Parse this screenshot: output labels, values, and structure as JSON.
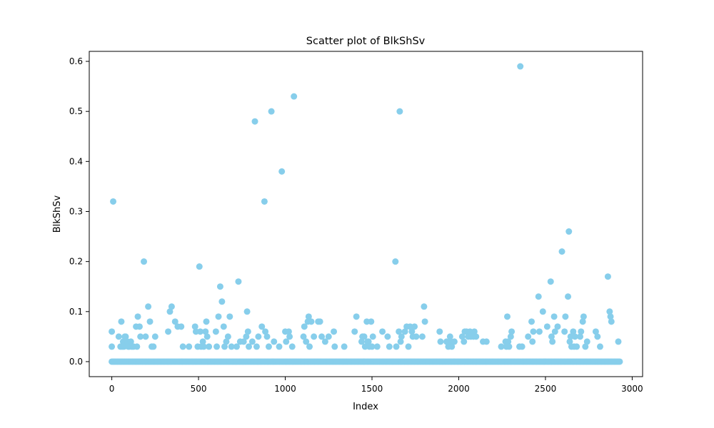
{
  "chart_data": {
    "type": "scatter",
    "title": "Scatter plot of BlkShSv",
    "xlabel": "Index",
    "ylabel": "BlkShSv",
    "xlim": [
      -130,
      3060
    ],
    "ylim": [
      -0.03,
      0.62
    ],
    "xticks": [
      0,
      500,
      1000,
      1500,
      2000,
      2500,
      3000
    ],
    "yticks": [
      0.0,
      0.1,
      0.2,
      0.3,
      0.4,
      0.5,
      0.6
    ],
    "xtick_labels": [
      "0",
      "500",
      "1000",
      "1500",
      "2000",
      "2500",
      "3000"
    ],
    "ytick_labels": [
      "0.0",
      "0.1",
      "0.2",
      "0.3",
      "0.4",
      "0.5",
      "0.6"
    ],
    "grid": false,
    "marker_color": "#87CEEB",
    "zero_band": {
      "x_start": 0,
      "x_end": 2929,
      "step": 8,
      "y": 0
    },
    "points": [
      [
        0,
        0.06
      ],
      [
        0,
        0.03
      ],
      [
        8,
        0.32
      ],
      [
        40,
        0.05
      ],
      [
        50,
        0.03
      ],
      [
        55,
        0.08
      ],
      [
        60,
        0.03
      ],
      [
        65,
        0.04
      ],
      [
        70,
        0.03
      ],
      [
        75,
        0.05
      ],
      [
        80,
        0.05
      ],
      [
        90,
        0.04
      ],
      [
        95,
        0.03
      ],
      [
        100,
        0.03
      ],
      [
        110,
        0.04
      ],
      [
        115,
        0.03
      ],
      [
        125,
        0.03
      ],
      [
        140,
        0.07
      ],
      [
        145,
        0.03
      ],
      [
        150,
        0.09
      ],
      [
        160,
        0.07
      ],
      [
        165,
        0.05
      ],
      [
        185,
        0.2
      ],
      [
        195,
        0.05
      ],
      [
        210,
        0.11
      ],
      [
        220,
        0.08
      ],
      [
        230,
        0.03
      ],
      [
        240,
        0.03
      ],
      [
        250,
        0.05
      ],
      [
        325,
        0.06
      ],
      [
        335,
        0.1
      ],
      [
        345,
        0.11
      ],
      [
        365,
        0.08
      ],
      [
        380,
        0.07
      ],
      [
        400,
        0.07
      ],
      [
        410,
        0.03
      ],
      [
        445,
        0.03
      ],
      [
        480,
        0.07
      ],
      [
        485,
        0.06
      ],
      [
        495,
        0.03
      ],
      [
        505,
        0.19
      ],
      [
        510,
        0.06
      ],
      [
        515,
        0.03
      ],
      [
        525,
        0.04
      ],
      [
        530,
        0.03
      ],
      [
        540,
        0.06
      ],
      [
        545,
        0.08
      ],
      [
        550,
        0.05
      ],
      [
        560,
        0.03
      ],
      [
        600,
        0.06
      ],
      [
        605,
        0.03
      ],
      [
        615,
        0.09
      ],
      [
        625,
        0.15
      ],
      [
        635,
        0.12
      ],
      [
        645,
        0.07
      ],
      [
        650,
        0.03
      ],
      [
        660,
        0.04
      ],
      [
        670,
        0.05
      ],
      [
        680,
        0.09
      ],
      [
        690,
        0.03
      ],
      [
        720,
        0.03
      ],
      [
        730,
        0.16
      ],
      [
        740,
        0.04
      ],
      [
        760,
        0.04
      ],
      [
        775,
        0.05
      ],
      [
        780,
        0.1
      ],
      [
        785,
        0.06
      ],
      [
        790,
        0.03
      ],
      [
        810,
        0.04
      ],
      [
        825,
        0.48
      ],
      [
        835,
        0.03
      ],
      [
        845,
        0.05
      ],
      [
        865,
        0.07
      ],
      [
        880,
        0.32
      ],
      [
        885,
        0.06
      ],
      [
        895,
        0.05
      ],
      [
        905,
        0.03
      ],
      [
        920,
        0.5
      ],
      [
        935,
        0.04
      ],
      [
        965,
        0.03
      ],
      [
        980,
        0.38
      ],
      [
        1000,
        0.06
      ],
      [
        1005,
        0.04
      ],
      [
        1020,
        0.06
      ],
      [
        1025,
        0.05
      ],
      [
        1040,
        0.03
      ],
      [
        1050,
        0.53
      ],
      [
        1105,
        0.05
      ],
      [
        1110,
        0.07
      ],
      [
        1120,
        0.04
      ],
      [
        1130,
        0.08
      ],
      [
        1135,
        0.09
      ],
      [
        1140,
        0.03
      ],
      [
        1150,
        0.08
      ],
      [
        1165,
        0.05
      ],
      [
        1190,
        0.08
      ],
      [
        1200,
        0.08
      ],
      [
        1210,
        0.05
      ],
      [
        1230,
        0.04
      ],
      [
        1250,
        0.05
      ],
      [
        1280,
        0.06
      ],
      [
        1285,
        0.03
      ],
      [
        1340,
        0.03
      ],
      [
        1400,
        0.06
      ],
      [
        1410,
        0.09
      ],
      [
        1440,
        0.04
      ],
      [
        1445,
        0.05
      ],
      [
        1455,
        0.05
      ],
      [
        1460,
        0.03
      ],
      [
        1470,
        0.08
      ],
      [
        1475,
        0.04
      ],
      [
        1480,
        0.04
      ],
      [
        1485,
        0.03
      ],
      [
        1495,
        0.08
      ],
      [
        1500,
        0.03
      ],
      [
        1505,
        0.05
      ],
      [
        1530,
        0.03
      ],
      [
        1560,
        0.06
      ],
      [
        1590,
        0.05
      ],
      [
        1600,
        0.03
      ],
      [
        1635,
        0.2
      ],
      [
        1640,
        0.03
      ],
      [
        1655,
        0.06
      ],
      [
        1660,
        0.5
      ],
      [
        1665,
        0.04
      ],
      [
        1670,
        0.05
      ],
      [
        1690,
        0.06
      ],
      [
        1700,
        0.07
      ],
      [
        1710,
        0.03
      ],
      [
        1720,
        0.07
      ],
      [
        1730,
        0.06
      ],
      [
        1735,
        0.05
      ],
      [
        1745,
        0.07
      ],
      [
        1755,
        0.05
      ],
      [
        1790,
        0.05
      ],
      [
        1800,
        0.11
      ],
      [
        1805,
        0.08
      ],
      [
        1890,
        0.06
      ],
      [
        1895,
        0.04
      ],
      [
        1930,
        0.04
      ],
      [
        1940,
        0.03
      ],
      [
        1950,
        0.05
      ],
      [
        1955,
        0.04
      ],
      [
        1960,
        0.03
      ],
      [
        1975,
        0.04
      ],
      [
        2020,
        0.05
      ],
      [
        2030,
        0.04
      ],
      [
        2035,
        0.06
      ],
      [
        2045,
        0.06
      ],
      [
        2055,
        0.05
      ],
      [
        2065,
        0.06
      ],
      [
        2070,
        0.05
      ],
      [
        2085,
        0.05
      ],
      [
        2090,
        0.06
      ],
      [
        2100,
        0.05
      ],
      [
        2140,
        0.04
      ],
      [
        2160,
        0.04
      ],
      [
        2245,
        0.03
      ],
      [
        2270,
        0.04
      ],
      [
        2275,
        0.03
      ],
      [
        2280,
        0.09
      ],
      [
        2285,
        0.04
      ],
      [
        2290,
        0.03
      ],
      [
        2300,
        0.05
      ],
      [
        2305,
        0.06
      ],
      [
        2350,
        0.03
      ],
      [
        2355,
        0.59
      ],
      [
        2365,
        0.03
      ],
      [
        2400,
        0.05
      ],
      [
        2420,
        0.08
      ],
      [
        2425,
        0.04
      ],
      [
        2430,
        0.06
      ],
      [
        2460,
        0.13
      ],
      [
        2465,
        0.06
      ],
      [
        2485,
        0.1
      ],
      [
        2510,
        0.07
      ],
      [
        2530,
        0.16
      ],
      [
        2535,
        0.05
      ],
      [
        2540,
        0.04
      ],
      [
        2550,
        0.09
      ],
      [
        2555,
        0.06
      ],
      [
        2570,
        0.07
      ],
      [
        2595,
        0.22
      ],
      [
        2610,
        0.06
      ],
      [
        2615,
        0.09
      ],
      [
        2630,
        0.13
      ],
      [
        2635,
        0.26
      ],
      [
        2640,
        0.04
      ],
      [
        2645,
        0.05
      ],
      [
        2650,
        0.03
      ],
      [
        2660,
        0.06
      ],
      [
        2665,
        0.03
      ],
      [
        2670,
        0.05
      ],
      [
        2680,
        0.03
      ],
      [
        2700,
        0.05
      ],
      [
        2705,
        0.06
      ],
      [
        2715,
        0.08
      ],
      [
        2720,
        0.09
      ],
      [
        2730,
        0.03
      ],
      [
        2740,
        0.04
      ],
      [
        2790,
        0.06
      ],
      [
        2800,
        0.05
      ],
      [
        2815,
        0.03
      ],
      [
        2860,
        0.17
      ],
      [
        2870,
        0.1
      ],
      [
        2875,
        0.09
      ],
      [
        2880,
        0.08
      ],
      [
        2920,
        0.04
      ]
    ]
  }
}
